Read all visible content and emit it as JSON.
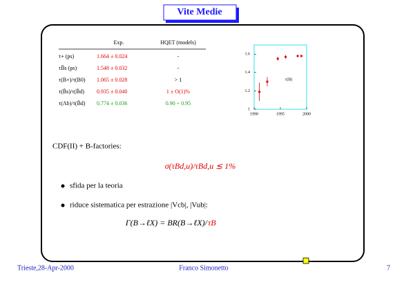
{
  "header": {
    "title": "Vite Medie"
  },
  "table": {
    "columns": [
      "Exp.",
      "HQET (models)"
    ],
    "rows": [
      [
        "τ+ (ps)",
        "1.664 ± 0.024",
        "-"
      ],
      [
        "τB̄s (ps)",
        "1.548 ± 0.032",
        "-"
      ],
      [
        "τ(B+)/τ(B0)",
        "1.065 ± 0.028",
        "> 1"
      ],
      [
        "τ(B̄s)/τ(B̄d)",
        "0.935 ± 0.040",
        "1 ± O(1)%"
      ],
      [
        "τ(Λb)/τ(B̄d)",
        "0.774 ± 0.036",
        "0.90 ÷ 0.95"
      ]
    ]
  },
  "plot": {
    "label": "τ(B)",
    "color": "#e00000",
    "x": [
      1991,
      1992.5,
      1994.5,
      1996,
      1998.3,
      1999
    ],
    "y": [
      1.19,
      1.3,
      1.55,
      1.57,
      1.58,
      1.58
    ],
    "err": [
      0.1,
      0.05,
      0.02,
      0.02,
      0.01,
      0.01
    ],
    "xlim": [
      1990,
      2000
    ],
    "ylim": [
      1,
      1.7
    ],
    "xticks": [
      1990,
      1995,
      2000
    ],
    "yticks": [
      1,
      1.2,
      1.4,
      1.6
    ]
  },
  "body": {
    "line1": "CDF(II) + B-factories:",
    "formula1": "σ(τBd,u)/τBd,u ≲ 1%",
    "bullets": [
      "sfida per la teoria",
      "riduce sistematica per estrazione |Vcb|, |Vub|:"
    ],
    "formula2": {
      "lhs": "Γ(B→ℓX) = BR(B→ℓX)/",
      "rhs": "τB"
    }
  },
  "footer": {
    "left": "Trieste,28-Apr-2000",
    "center": "Franco Simonetto",
    "page": "7"
  }
}
